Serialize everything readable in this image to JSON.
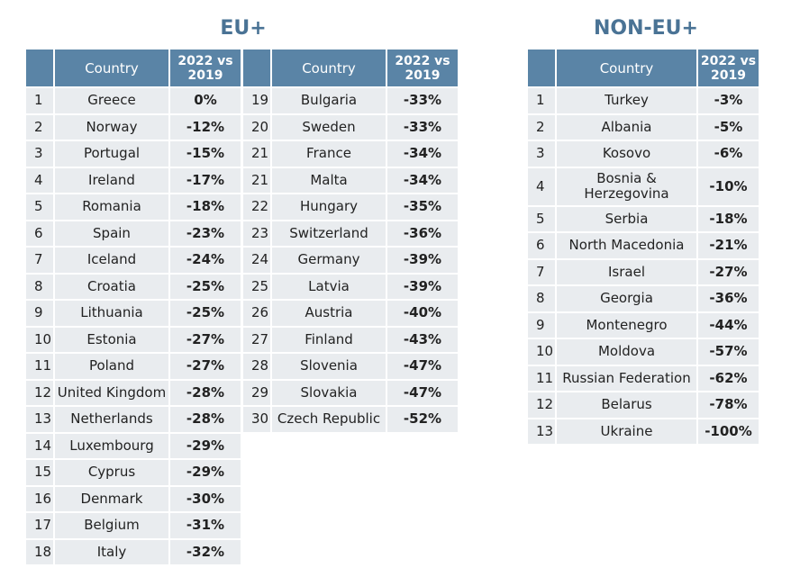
{
  "eu": {
    "title": "EU+",
    "headers": {
      "rank": "",
      "country": "Country",
      "change": "2022 vs 2019"
    },
    "rows": [
      {
        "rank": "1",
        "country": "Greece",
        "change": "0%"
      },
      {
        "rank": "2",
        "country": "Norway",
        "change": "-12%"
      },
      {
        "rank": "3",
        "country": "Portugal",
        "change": "-15%"
      },
      {
        "rank": "4",
        "country": "Ireland",
        "change": "-17%"
      },
      {
        "rank": "5",
        "country": "Romania",
        "change": "-18%"
      },
      {
        "rank": "6",
        "country": "Spain",
        "change": "-23%"
      },
      {
        "rank": "7",
        "country": "Iceland",
        "change": "-24%"
      },
      {
        "rank": "8",
        "country": "Croatia",
        "change": "-25%"
      },
      {
        "rank": "9",
        "country": "Lithuania",
        "change": "-25%"
      },
      {
        "rank": "10",
        "country": "Estonia",
        "change": "-27%"
      },
      {
        "rank": "11",
        "country": "Poland",
        "change": "-27%"
      },
      {
        "rank": "12",
        "country": "United Kingdom",
        "change": "-28%"
      },
      {
        "rank": "13",
        "country": "Netherlands",
        "change": "-28%"
      },
      {
        "rank": "14",
        "country": "Luxembourg",
        "change": "-29%"
      },
      {
        "rank": "15",
        "country": "Cyprus",
        "change": "-29%"
      },
      {
        "rank": "16",
        "country": "Denmark",
        "change": "-30%"
      },
      {
        "rank": "17",
        "country": "Belgium",
        "change": "-31%"
      },
      {
        "rank": "18",
        "country": "Italy",
        "change": "-32%"
      },
      {
        "rank": "19",
        "country": "Bulgaria",
        "change": "-33%"
      },
      {
        "rank": "20",
        "country": "Sweden",
        "change": "-33%"
      },
      {
        "rank": "21",
        "country": "France",
        "change": "-34%"
      },
      {
        "rank": "21",
        "country": "Malta",
        "change": "-34%"
      },
      {
        "rank": "22",
        "country": "Hungary",
        "change": "-35%"
      },
      {
        "rank": "23",
        "country": "Switzerland",
        "change": "-36%"
      },
      {
        "rank": "24",
        "country": "Germany",
        "change": "-39%"
      },
      {
        "rank": "25",
        "country": "Latvia",
        "change": "-39%"
      },
      {
        "rank": "26",
        "country": "Austria",
        "change": "-40%"
      },
      {
        "rank": "27",
        "country": "Finland",
        "change": "-43%"
      },
      {
        "rank": "28",
        "country": "Slovenia",
        "change": "-47%"
      },
      {
        "rank": "29",
        "country": "Slovakia",
        "change": "-47%"
      },
      {
        "rank": "30",
        "country": "Czech Republic",
        "change": "-52%"
      }
    ]
  },
  "non_eu": {
    "title": "NON-EU+",
    "headers": {
      "rank": "",
      "country": "Country",
      "change": "2022 vs 2019"
    },
    "rows": [
      {
        "rank": "1",
        "country": "Turkey",
        "change": "-3%"
      },
      {
        "rank": "2",
        "country": "Albania",
        "change": "-5%"
      },
      {
        "rank": "3",
        "country": "Kosovo",
        "change": "-6%"
      },
      {
        "rank": "4",
        "country": "Bosnia & Herzegovina",
        "change": "-10%"
      },
      {
        "rank": "5",
        "country": "Serbia",
        "change": "-18%"
      },
      {
        "rank": "6",
        "country": "North Macedonia",
        "change": "-21%"
      },
      {
        "rank": "7",
        "country": "Israel",
        "change": "-27%"
      },
      {
        "rank": "8",
        "country": "Georgia",
        "change": "-36%"
      },
      {
        "rank": "9",
        "country": "Montenegro",
        "change": "-44%"
      },
      {
        "rank": "10",
        "country": "Moldova",
        "change": "-57%"
      },
      {
        "rank": "11",
        "country": "Russian Federation",
        "change": "-62%"
      },
      {
        "rank": "12",
        "country": "Belarus",
        "change": "-78%"
      },
      {
        "rank": "13",
        "country": "Ukraine",
        "change": "-100%"
      }
    ]
  },
  "chart_data": [
    {
      "type": "table",
      "title": "EU+",
      "columns": [
        "",
        "Country",
        "2022 vs 2019"
      ],
      "categories": [
        "Greece",
        "Norway",
        "Portugal",
        "Ireland",
        "Romania",
        "Spain",
        "Iceland",
        "Croatia",
        "Lithuania",
        "Estonia",
        "Poland",
        "United Kingdom",
        "Netherlands",
        "Luxembourg",
        "Cyprus",
        "Denmark",
        "Belgium",
        "Italy",
        "Bulgaria",
        "Sweden",
        "France",
        "Malta",
        "Hungary",
        "Switzerland",
        "Germany",
        "Latvia",
        "Austria",
        "Finland",
        "Slovenia",
        "Slovakia",
        "Czech Republic"
      ],
      "ranks": [
        1,
        2,
        3,
        4,
        5,
        6,
        7,
        8,
        9,
        10,
        11,
        12,
        13,
        14,
        15,
        16,
        17,
        18,
        19,
        20,
        21,
        21,
        22,
        23,
        24,
        25,
        26,
        27,
        28,
        29,
        30
      ],
      "values": [
        0,
        -12,
        -15,
        -17,
        -18,
        -23,
        -24,
        -25,
        -25,
        -27,
        -27,
        -28,
        -28,
        -29,
        -29,
        -30,
        -31,
        -32,
        -33,
        -33,
        -34,
        -34,
        -35,
        -36,
        -39,
        -39,
        -40,
        -43,
        -47,
        -47,
        -52
      ]
    },
    {
      "type": "table",
      "title": "NON-EU+",
      "columns": [
        "",
        "Country",
        "2022 vs 2019"
      ],
      "categories": [
        "Turkey",
        "Albania",
        "Kosovo",
        "Bosnia & Herzegovina",
        "Serbia",
        "North Macedonia",
        "Israel",
        "Georgia",
        "Montenegro",
        "Moldova",
        "Russian Federation",
        "Belarus",
        "Ukraine"
      ],
      "ranks": [
        1,
        2,
        3,
        4,
        5,
        6,
        7,
        8,
        9,
        10,
        11,
        12,
        13
      ],
      "values": [
        -3,
        -5,
        -6,
        -10,
        -18,
        -21,
        -27,
        -36,
        -44,
        -57,
        -62,
        -78,
        -100
      ]
    }
  ]
}
